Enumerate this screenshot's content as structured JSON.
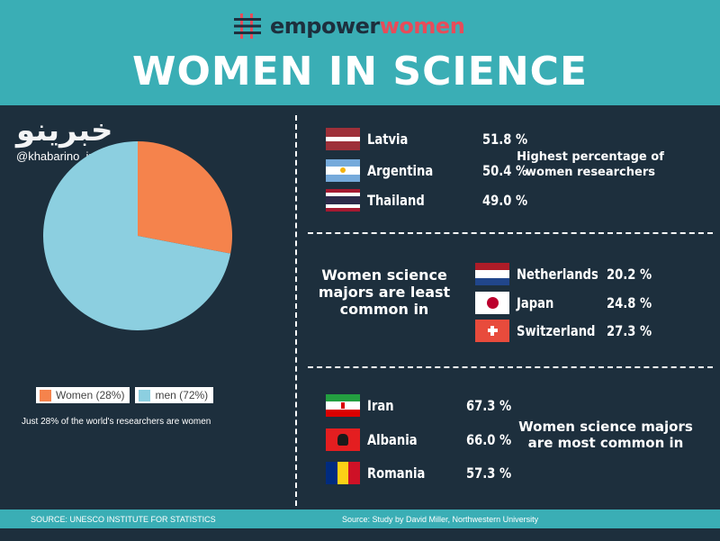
{
  "header": {
    "brand_part1": "empower",
    "brand_part2": "women",
    "title": "WOMEN IN SCIENCE"
  },
  "watermark": {
    "logo_text": "خبرینو",
    "handle": "@khabarino_ir"
  },
  "colors": {
    "teal": "#3aaeb5",
    "navy": "#1d2f3d",
    "women": "#f5834c",
    "men": "#8ccfe0",
    "brand_red": "#e74c5a"
  },
  "chart_data": {
    "type": "pie",
    "labels": [
      "Women (28%)",
      "men (72%)"
    ],
    "values": [
      28,
      72
    ],
    "colors": [
      "#f5834c",
      "#8ccfe0"
    ]
  },
  "pie_note": "Just 28% of the world's researchers are women",
  "highest": {
    "caption": "Highest percentage of women researchers",
    "rows": [
      {
        "country": "Latvia",
        "pct": "51.8 %",
        "flag": "latvia-flag-icon"
      },
      {
        "country": "Argentina",
        "pct": "50.4 %",
        "flag": "argentina-flag-icon"
      },
      {
        "country": "Thailand",
        "pct": "49.0 %",
        "flag": "thailand-flag-icon"
      }
    ]
  },
  "least": {
    "caption": "Women science majors are least common in",
    "rows": [
      {
        "country": "Netherlands",
        "pct": "20.2 %",
        "flag": "netherlands-flag-icon"
      },
      {
        "country": "Japan",
        "pct": "24.8 %",
        "flag": "japan-flag-icon"
      },
      {
        "country": "Switzerland",
        "pct": "27.3 %",
        "flag": "switzerland-flag-icon"
      }
    ]
  },
  "most": {
    "caption": "Women science majors are most common in",
    "rows": [
      {
        "country": "Iran",
        "pct": "67.3 %",
        "flag": "iran-flag-icon"
      },
      {
        "country": "Albania",
        "pct": "66.0 %",
        "flag": "albania-flag-icon"
      },
      {
        "country": "Romania",
        "pct": "57.3 %",
        "flag": "romania-flag-icon"
      }
    ]
  },
  "footer": {
    "source_left": "SOURCE: UNESCO INSTITUTE FOR STATISTICS",
    "source_right": "Source: Study by David Miller, Northwestern University"
  }
}
